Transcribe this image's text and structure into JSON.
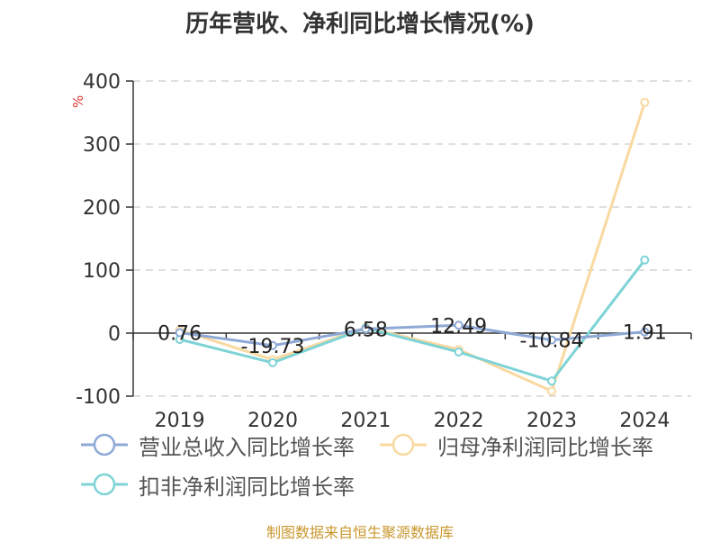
{
  "header": {
    "title": "历年营收、净利同比增长情况(%)"
  },
  "footer": {
    "source": "制图数据来自恒生聚源数据库"
  },
  "chart_data": {
    "type": "line",
    "title": "历年营收、净利同比增长情况(%)",
    "ylabel": "%",
    "xlabel": "",
    "categories": [
      "2019",
      "2020",
      "2021",
      "2022",
      "2023",
      "2024"
    ],
    "ylim": [
      -100,
      400
    ],
    "yticks": [
      400,
      300,
      200,
      100,
      0,
      -100
    ],
    "grid": true,
    "legend_position": "bottom",
    "series": [
      {
        "name": "营业总收入同比增长率",
        "color": "#8ea9d6",
        "values": [
          0.76,
          -19.73,
          6.58,
          12.49,
          -10.84,
          1.91
        ],
        "show_labels": true
      },
      {
        "name": "归母净利润同比增长率",
        "color": "#f9d9a0",
        "values": [
          5,
          -42,
          9,
          -26,
          -92,
          366
        ],
        "show_labels": false
      },
      {
        "name": "扣非净利润同比增长率",
        "color": "#7dd3d6",
        "values": [
          -10,
          -47,
          8,
          -30,
          -76,
          116
        ],
        "show_labels": false
      }
    ]
  }
}
